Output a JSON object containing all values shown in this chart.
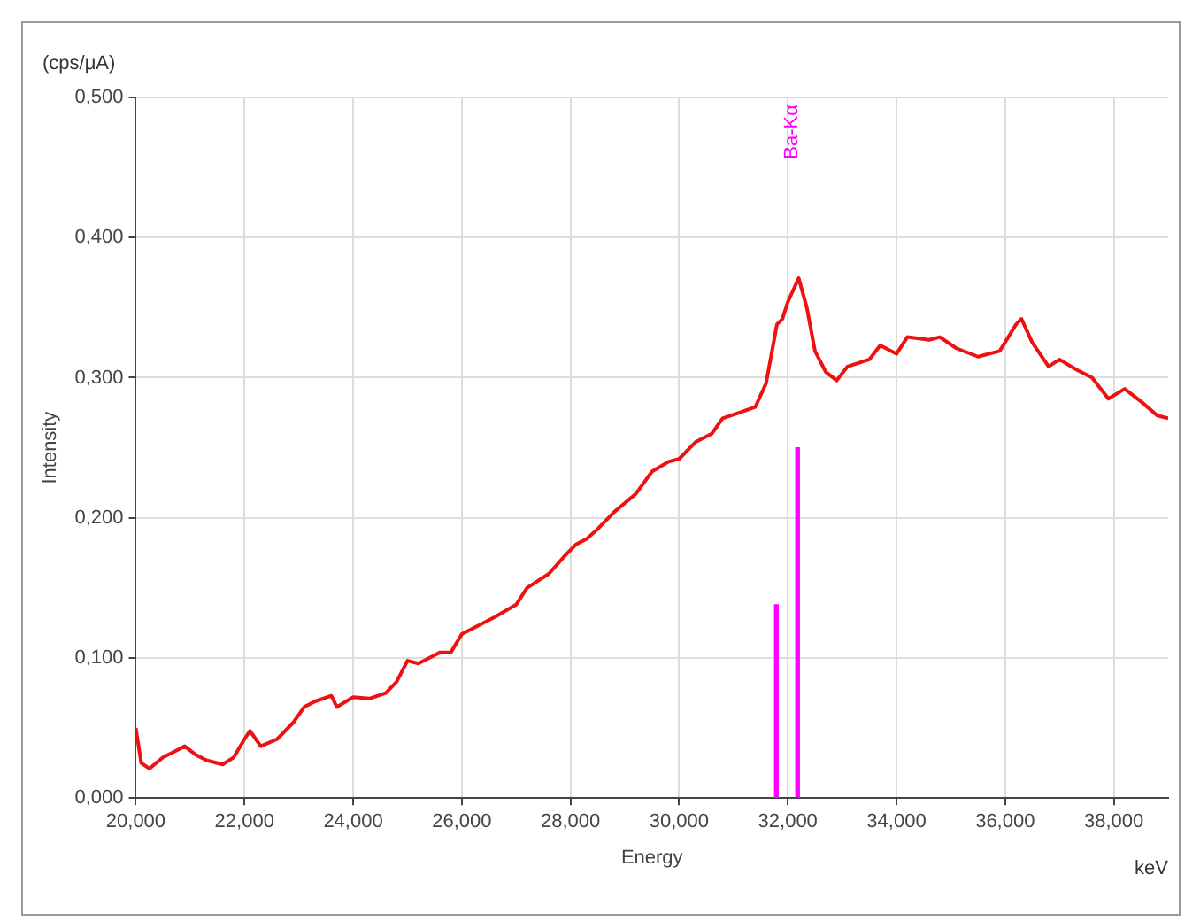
{
  "chart_data": {
    "type": "line",
    "xlabel": "Energy",
    "ylabel": "Intensity",
    "annotations": [
      "(cps/μA)",
      "keV"
    ],
    "xlim": [
      20,
      39
    ],
    "ylim": [
      0,
      0.5
    ],
    "xticks": [
      {
        "value": 20,
        "label": "20,000"
      },
      {
        "value": 22,
        "label": "22,000"
      },
      {
        "value": 24,
        "label": "24,000"
      },
      {
        "value": 26,
        "label": "26,000"
      },
      {
        "value": 28,
        "label": "28,000"
      },
      {
        "value": 30,
        "label": "30,000"
      },
      {
        "value": 32,
        "label": "32,000"
      },
      {
        "value": 34,
        "label": "34,000"
      },
      {
        "value": 36,
        "label": "36,000"
      },
      {
        "value": 38,
        "label": "38,000"
      }
    ],
    "yticks": [
      {
        "value": 0,
        "label": "0,000"
      },
      {
        "value": 0.1,
        "label": "0,100"
      },
      {
        "value": 0.2,
        "label": "0,200"
      },
      {
        "value": 0.3,
        "label": "0,300"
      },
      {
        "value": 0.4,
        "label": "0,400"
      },
      {
        "value": 0.5,
        "label": "0,500"
      }
    ],
    "grid": true,
    "legend": false,
    "marker": "none",
    "line_style": "solid",
    "series": [
      {
        "color": "#ee1111",
        "x": [
          20,
          20.1,
          20.25,
          20.5,
          20.7,
          20.9,
          21.1,
          21.3,
          21.6,
          21.8,
          22,
          22.1,
          22.3,
          22.6,
          22.9,
          23.1,
          23.3,
          23.6,
          23.7,
          24,
          24.3,
          24.6,
          24.8,
          25,
          25.2,
          25.4,
          25.6,
          25.8,
          26,
          26.3,
          26.6,
          27,
          27.2,
          27.6,
          27.9,
          28.1,
          28.3,
          28.5,
          28.8,
          29.2,
          29.5,
          29.8,
          30,
          30.3,
          30.6,
          30.8,
          31.1,
          31.4,
          31.6,
          31.8,
          31.9,
          32,
          32.2,
          32.35,
          32.5,
          32.7,
          32.9,
          33.1,
          33.5,
          33.7,
          34,
          34.2,
          34.6,
          34.8,
          35.1,
          35.5,
          35.9,
          36.2,
          36.3,
          36.5,
          36.8,
          37,
          37.3,
          37.6,
          37.9,
          38.2,
          38.5,
          38.8,
          39
        ],
        "values": [
          0.05,
          0.025,
          0.021,
          0.029,
          0.033,
          0.037,
          0.031,
          0.027,
          0.024,
          0.029,
          0.042,
          0.048,
          0.037,
          0.042,
          0.054,
          0.065,
          0.069,
          0.073,
          0.065,
          0.072,
          0.071,
          0.075,
          0.083,
          0.098,
          0.096,
          0.1,
          0.104,
          0.104,
          0.117,
          0.123,
          0.129,
          0.138,
          0.15,
          0.16,
          0.173,
          0.181,
          0.185,
          0.192,
          0.204,
          0.217,
          0.233,
          0.24,
          0.242,
          0.254,
          0.26,
          0.271,
          0.275,
          0.279,
          0.296,
          0.338,
          0.342,
          0.354,
          0.371,
          0.35,
          0.319,
          0.304,
          0.298,
          0.308,
          0.313,
          0.323,
          0.317,
          0.329,
          0.327,
          0.329,
          0.321,
          0.315,
          0.319,
          0.338,
          0.342,
          0.325,
          0.308,
          0.313,
          0.306,
          0.3,
          0.285,
          0.292,
          0.283,
          0.273,
          0.271
        ]
      },
      {
        "type": "bar",
        "name": "Ba-Kα",
        "color": "#ff00ff",
        "x": [
          31.79,
          32.18
        ],
        "values": [
          0.138,
          0.25
        ]
      }
    ]
  }
}
